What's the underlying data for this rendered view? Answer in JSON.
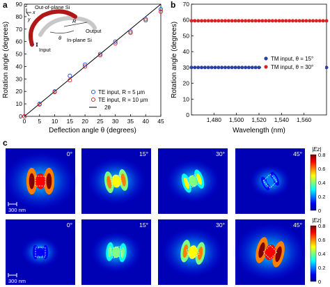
{
  "panel_labels": [
    "a",
    "b",
    "c"
  ],
  "panel_a": {
    "inset_labels": {
      "out_of_plane": "Out-of-plane Si",
      "in_plane": "In-plane Si",
      "input": "Input",
      "output": "Output",
      "x": "x",
      "y": "y",
      "z": "z",
      "R": "R",
      "theta": "θ"
    }
  },
  "panel_c": {
    "scale_bar_label": "300 nm",
    "colorbar_label": "|Ez|",
    "colorbar_ticks": [
      "0.8",
      "0.6",
      "0.4",
      "0.2",
      "0"
    ],
    "row1_angles": [
      "0°",
      "15°",
      "30°",
      "45°"
    ],
    "row2_angles": [
      "0°",
      "15°",
      "30°",
      "45°"
    ],
    "colormap": [
      "#00008f",
      "#0000ff",
      "#0080ff",
      "#00ffff",
      "#80ff80",
      "#ffff00",
      "#ff8000",
      "#ff0000",
      "#800000"
    ],
    "field_maps": {
      "row1": [
        {
          "angle": 0,
          "intensity": 0.8
        },
        {
          "angle": 15,
          "intensity": 0.55
        },
        {
          "angle": 30,
          "intensity": 0.45
        },
        {
          "angle": 45,
          "intensity": 0.2
        }
      ],
      "row2": [
        {
          "angle": 0,
          "intensity": 0.15
        },
        {
          "angle": 15,
          "intensity": 0.4
        },
        {
          "angle": 30,
          "intensity": 0.6
        },
        {
          "angle": 45,
          "intensity": 0.8
        }
      ]
    }
  },
  "chart_data": [
    {
      "panel": "a",
      "type": "scatter",
      "xlabel": "Deflection angle θ (degrees)",
      "ylabel": "Rotation angle (degrees)",
      "xlim": [
        0,
        45
      ],
      "ylim": [
        0,
        90
      ],
      "xticks": [
        0,
        5,
        10,
        15,
        20,
        25,
        30,
        35,
        40,
        45
      ],
      "yticks": [
        0,
        10,
        20,
        30,
        40,
        50,
        60,
        70,
        80,
        90
      ],
      "grid": false,
      "legend_position": "bottom-right",
      "series": [
        {
          "name": "TE input, R = 5 µm",
          "marker": "circle-open",
          "color": "#1f4fd6",
          "x": [
            0,
            5,
            10,
            15,
            20,
            25,
            30,
            35,
            40,
            45
          ],
          "y": [
            0,
            10,
            20,
            32.5,
            41.5,
            50,
            60,
            68,
            78,
            86
          ]
        },
        {
          "name": "TE input, R = 10 µm",
          "marker": "circle-open",
          "color": "#e02020",
          "x": [
            0,
            5,
            10,
            15,
            20,
            25,
            30,
            35,
            40,
            45
          ],
          "y": [
            0,
            9.5,
            19.5,
            29,
            40,
            49,
            58.5,
            67,
            77,
            84
          ]
        },
        {
          "name": "2θ",
          "marker": "line",
          "color": "#000000",
          "x": [
            0,
            45
          ],
          "y": [
            0,
            90
          ]
        }
      ]
    },
    {
      "panel": "b",
      "type": "scatter",
      "xlabel": "Wavelength (nm)",
      "ylabel": "Rotation angle (degrees)",
      "xlim": [
        1460,
        1580
      ],
      "ylim": [
        0,
        70
      ],
      "xticks": [
        1480,
        1500,
        1520,
        1540,
        1560
      ],
      "xticklabels": [
        "1,480",
        "1,500",
        "1,520",
        "1,540",
        "1,560"
      ],
      "yticks": [
        0,
        10,
        20,
        30,
        40,
        50,
        60,
        70
      ],
      "grid": false,
      "legend_position": "center-right",
      "series": [
        {
          "name": "TM input, θ = 15°",
          "marker": "circle-filled",
          "color": "#2a3fa8",
          "x_range": [
            1460,
            1580
          ],
          "num_points": 41,
          "y_constant": 30
        },
        {
          "name": "TM input, θ = 30°",
          "marker": "circle-filled",
          "color": "#e02020",
          "x_range": [
            1460,
            1580
          ],
          "num_points": 41,
          "y_constant": 59.5
        }
      ]
    }
  ]
}
